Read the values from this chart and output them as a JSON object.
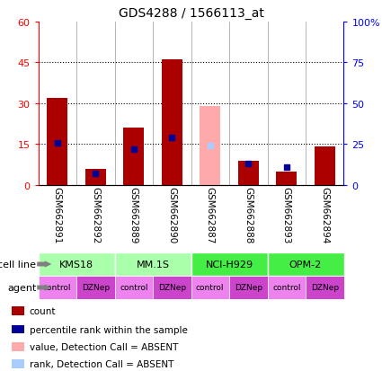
{
  "title": "GDS4288 / 1566113_at",
  "samples": [
    "GSM662891",
    "GSM662892",
    "GSM662889",
    "GSM662890",
    "GSM662887",
    "GSM662888",
    "GSM662893",
    "GSM662894"
  ],
  "count_values": [
    32,
    6,
    21,
    46,
    null,
    9,
    5,
    14
  ],
  "count_absent": [
    null,
    null,
    null,
    null,
    29,
    null,
    null,
    null
  ],
  "rank_values": [
    26,
    7,
    22,
    29,
    null,
    13,
    11,
    null
  ],
  "rank_absent": [
    null,
    null,
    null,
    null,
    24,
    null,
    null,
    null
  ],
  "ylim_left": [
    0,
    60
  ],
  "ylim_right": [
    0,
    100
  ],
  "yticks_left": [
    0,
    15,
    30,
    45,
    60
  ],
  "ytick_labels_left": [
    "0",
    "15",
    "30",
    "45",
    "60"
  ],
  "yticks_right": [
    0,
    25,
    50,
    75,
    100
  ],
  "ytick_labels_right": [
    "0",
    "25",
    "50",
    "75",
    "100%"
  ],
  "cell_lines": [
    {
      "label": "KMS18",
      "span": [
        0,
        2
      ],
      "color": "#AAFFAA"
    },
    {
      "label": "MM.1S",
      "span": [
        2,
        4
      ],
      "color": "#AAFFAA"
    },
    {
      "label": "NCI-H929",
      "span": [
        4,
        6
      ],
      "color": "#44EE44"
    },
    {
      "label": "OPM-2",
      "span": [
        6,
        8
      ],
      "color": "#44EE44"
    }
  ],
  "agents": [
    "control",
    "DZNep",
    "control",
    "DZNep",
    "control",
    "DZNep",
    "control",
    "DZNep"
  ],
  "agent_colors_ctrl": "#EE82EE",
  "agent_colors_dznep": "#CC44CC",
  "bar_width": 0.55,
  "count_color": "#AA0000",
  "count_absent_color": "#FFAAAA",
  "rank_color": "#000099",
  "rank_absent_color": "#AACCFF",
  "sample_bg_color": "#CCCCCC",
  "legend_items": [
    {
      "color": "#AA0000",
      "label": "count"
    },
    {
      "color": "#000099",
      "label": "percentile rank within the sample"
    },
    {
      "color": "#FFAAAA",
      "label": "value, Detection Call = ABSENT"
    },
    {
      "color": "#AACCFF",
      "label": "rank, Detection Call = ABSENT"
    }
  ]
}
